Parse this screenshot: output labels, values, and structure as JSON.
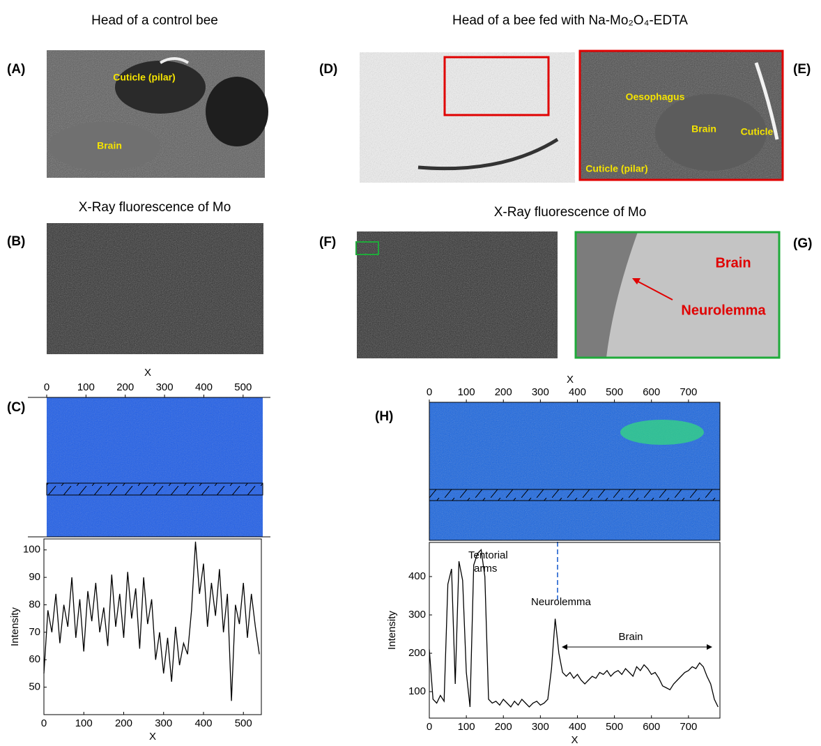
{
  "titles": {
    "control": "Head of a control bee",
    "fed": "Head of a bee fed with Na-Mo₂O₄-EDTA",
    "xrf_left": "X-Ray fluorescence of Mo",
    "xrf_right": "X-Ray fluorescence of Mo"
  },
  "panel_labels": [
    "(A)",
    "(B)",
    "(C)",
    "(D)",
    "(E)",
    "(F)",
    "(G)",
    "(H)"
  ],
  "image_labels": {
    "a_cuticle": "Cuticle (pilar)",
    "a_brain": "Brain",
    "e_oesophagus": "Oesophagus",
    "e_brain": "Brain",
    "e_cuticle": "Cuticle",
    "e_cuticle_pilar": "Cuticle (pilar)",
    "g_brain": "Brain",
    "g_neurolemma": "Neurolemma"
  },
  "heatmaps": [
    {
      "xlabel": "X",
      "xlim": [
        0,
        550
      ],
      "xticks": [
        0,
        100,
        200,
        300,
        400,
        500
      ]
    },
    {
      "xlabel": "X",
      "xlim": [
        0,
        785
      ],
      "xticks": [
        0,
        100,
        200,
        300,
        400,
        500,
        600,
        700
      ]
    }
  ],
  "chart_data": [
    {
      "type": "line",
      "xlabel": "X",
      "ylabel": "Intensity",
      "color": "#000000",
      "xlim": [
        0,
        545
      ],
      "ylim": [
        40,
        104
      ],
      "xticks": [
        0,
        100,
        200,
        300,
        400,
        500
      ],
      "yticks": [
        50,
        60,
        70,
        80,
        90,
        100
      ],
      "x": [
        0,
        10,
        20,
        30,
        40,
        50,
        60,
        70,
        80,
        90,
        100,
        110,
        120,
        130,
        140,
        150,
        160,
        170,
        180,
        190,
        200,
        210,
        220,
        230,
        240,
        250,
        260,
        270,
        280,
        290,
        300,
        310,
        320,
        330,
        340,
        350,
        360,
        370,
        380,
        390,
        400,
        410,
        420,
        430,
        440,
        450,
        460,
        470,
        480,
        490,
        500,
        510,
        520,
        530,
        540
      ],
      "values": [
        55,
        78,
        70,
        84,
        66,
        80,
        72,
        90,
        68,
        82,
        63,
        85,
        74,
        88,
        70,
        79,
        65,
        91,
        72,
        84,
        68,
        92,
        75,
        86,
        64,
        90,
        73,
        82,
        60,
        70,
        55,
        68,
        52,
        72,
        58,
        66,
        62,
        78,
        103,
        84,
        95,
        72,
        88,
        76,
        93,
        70,
        84,
        45,
        80,
        73,
        88,
        68,
        84,
        72,
        62
      ]
    },
    {
      "type": "line",
      "xlabel": "X",
      "ylabel": "Intensity",
      "color": "#000000",
      "xlim": [
        0,
        785
      ],
      "ylim": [
        31,
        489
      ],
      "xticks": [
        0,
        100,
        200,
        300,
        400,
        500,
        600,
        700
      ],
      "yticks": [
        100,
        200,
        300,
        400
      ],
      "annotations": {
        "tentorial": [
          "Tentorial",
          "arms"
        ],
        "neurolemma": "Neurolemma",
        "brain": "Brain"
      },
      "x": [
        0,
        10,
        20,
        30,
        40,
        50,
        60,
        70,
        80,
        90,
        100,
        110,
        120,
        130,
        140,
        150,
        160,
        170,
        180,
        190,
        200,
        210,
        220,
        230,
        240,
        250,
        260,
        270,
        280,
        290,
        300,
        310,
        320,
        330,
        340,
        350,
        360,
        370,
        380,
        390,
        400,
        410,
        420,
        430,
        440,
        450,
        460,
        470,
        480,
        490,
        500,
        510,
        520,
        530,
        540,
        550,
        560,
        570,
        580,
        590,
        600,
        610,
        620,
        630,
        640,
        650,
        660,
        670,
        680,
        690,
        700,
        710,
        720,
        730,
        740,
        750,
        760,
        770,
        780
      ],
      "values": [
        210,
        80,
        70,
        90,
        75,
        380,
        420,
        120,
        440,
        390,
        150,
        60,
        430,
        460,
        470,
        400,
        80,
        70,
        75,
        65,
        80,
        70,
        60,
        75,
        65,
        80,
        70,
        60,
        70,
        75,
        65,
        70,
        80,
        160,
        290,
        200,
        150,
        140,
        150,
        135,
        145,
        130,
        120,
        130,
        140,
        135,
        150,
        145,
        155,
        140,
        150,
        155,
        145,
        160,
        150,
        140,
        165,
        155,
        170,
        160,
        145,
        150,
        135,
        115,
        110,
        105,
        120,
        130,
        140,
        150,
        155,
        165,
        160,
        175,
        165,
        140,
        120,
        80,
        60
      ]
    }
  ]
}
